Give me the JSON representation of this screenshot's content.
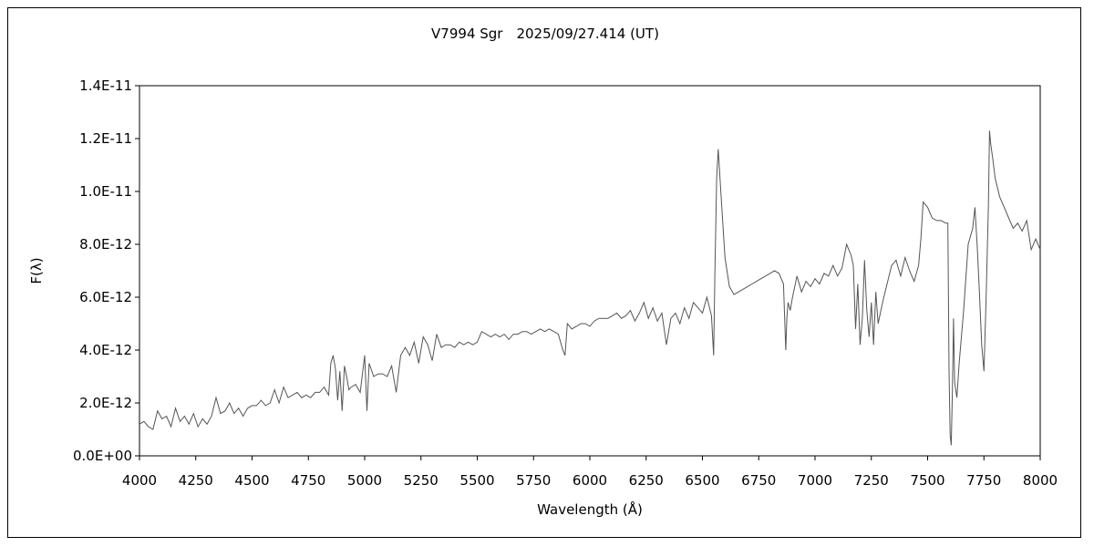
{
  "chart_data": {
    "type": "line",
    "title": "V7994 Sgr　2025/09/27.414 (UT)",
    "xlabel": "Wavelength (Å)",
    "ylabel": "F(λ)",
    "xlim": [
      4000,
      8000
    ],
    "ylim": [
      0,
      1.4e-11
    ],
    "xticks": [
      4000,
      4250,
      4500,
      4750,
      5000,
      5250,
      5500,
      5750,
      6000,
      6250,
      6500,
      6750,
      7000,
      7250,
      7500,
      7750,
      8000
    ],
    "xtick_labels": [
      "4000",
      "4250",
      "4500",
      "4750",
      "5000",
      "5250",
      "5500",
      "5750",
      "6000",
      "6250",
      "6500",
      "6750",
      "7000",
      "7250",
      "7500",
      "7750",
      "8000"
    ],
    "yticks": [
      0,
      2e-12,
      4e-12,
      6e-12,
      8e-12,
      1e-11,
      1.2e-11,
      1.4e-11
    ],
    "ytick_labels": [
      "0.0E+00",
      "2.0E-12",
      "4.0E-12",
      "6.0E-12",
      "8.0E-12",
      "1.0E-11",
      "1.2E-11",
      "1.4E-11"
    ],
    "grid": false,
    "line_color": "#555555",
    "series": [
      {
        "x": [
          4000,
          4020,
          4040,
          4060,
          4080,
          4100,
          4120,
          4140,
          4160,
          4180,
          4200,
          4220,
          4240,
          4260,
          4280,
          4300,
          4320,
          4340,
          4360,
          4380,
          4400,
          4420,
          4440,
          4460,
          4480,
          4500,
          4520,
          4540,
          4560,
          4580,
          4600,
          4620,
          4640,
          4660,
          4680,
          4700,
          4720,
          4740,
          4760,
          4780,
          4800,
          4820,
          4840,
          4850,
          4860,
          4870,
          4880,
          4890,
          4900,
          4910,
          4920,
          4930,
          4940,
          4960,
          4980,
          5000,
          5010,
          5020,
          5040,
          5060,
          5080,
          5100,
          5120,
          5140,
          5160,
          5180,
          5200,
          5220,
          5240,
          5260,
          5280,
          5300,
          5320,
          5340,
          5360,
          5380,
          5400,
          5420,
          5440,
          5460,
          5480,
          5500,
          5520,
          5540,
          5560,
          5580,
          5600,
          5620,
          5640,
          5660,
          5680,
          5700,
          5720,
          5740,
          5760,
          5780,
          5800,
          5820,
          5840,
          5860,
          5880,
          5890,
          5900,
          5920,
          5940,
          5960,
          5980,
          6000,
          6020,
          6040,
          6060,
          6080,
          6100,
          6120,
          6140,
          6160,
          6180,
          6200,
          6220,
          6240,
          6260,
          6280,
          6300,
          6320,
          6340,
          6360,
          6380,
          6400,
          6420,
          6440,
          6460,
          6480,
          6500,
          6520,
          6540,
          6550,
          6555,
          6563,
          6570,
          6580,
          6600,
          6620,
          6640,
          6660,
          6680,
          6700,
          6720,
          6740,
          6760,
          6780,
          6800,
          6820,
          6840,
          6860,
          6870,
          6875,
          6880,
          6890,
          6900,
          6920,
          6940,
          6960,
          6980,
          7000,
          7020,
          7040,
          7060,
          7080,
          7100,
          7120,
          7140,
          7160,
          7170,
          7180,
          7190,
          7200,
          7210,
          7220,
          7230,
          7240,
          7250,
          7260,
          7270,
          7280,
          7300,
          7320,
          7340,
          7360,
          7380,
          7400,
          7420,
          7440,
          7460,
          7470,
          7480,
          7500,
          7520,
          7540,
          7560,
          7580,
          7590,
          7595,
          7600,
          7605,
          7610,
          7615,
          7620,
          7630,
          7640,
          7660,
          7680,
          7700,
          7710,
          7720,
          7730,
          7740,
          7750,
          7760,
          7770,
          7775,
          7780,
          7790,
          7800,
          7820,
          7840,
          7860,
          7880,
          7900,
          7920,
          7940,
          7960,
          7980,
          8000
        ],
        "y": [
          1.2e-12,
          1.3e-12,
          1.1e-12,
          1e-12,
          1.7e-12,
          1.4e-12,
          1.5e-12,
          1.1e-12,
          1.8e-12,
          1.3e-12,
          1.5e-12,
          1.2e-12,
          1.6e-12,
          1.1e-12,
          1.4e-12,
          1.2e-12,
          1.5e-12,
          2.2e-12,
          1.6e-12,
          1.7e-12,
          2e-12,
          1.6e-12,
          1.8e-12,
          1.5e-12,
          1.8e-12,
          1.9e-12,
          1.9e-12,
          2.1e-12,
          1.9e-12,
          2e-12,
          2.5e-12,
          2e-12,
          2.6e-12,
          2.2e-12,
          2.3e-12,
          2.4e-12,
          2.2e-12,
          2.3e-12,
          2.2e-12,
          2.4e-12,
          2.4e-12,
          2.6e-12,
          2.3e-12,
          3.5e-12,
          3.8e-12,
          3.3e-12,
          2.1e-12,
          3.2e-12,
          1.7e-12,
          3.4e-12,
          3e-12,
          2.5e-12,
          2.6e-12,
          2.7e-12,
          2.4e-12,
          3.8e-12,
          1.7e-12,
          3.5e-12,
          3e-12,
          3.1e-12,
          3.1e-12,
          3e-12,
          3.4e-12,
          2.4e-12,
          3.8e-12,
          4.1e-12,
          3.8e-12,
          4.3e-12,
          3.5e-12,
          4.5e-12,
          4.2e-12,
          3.6e-12,
          4.6e-12,
          4.1e-12,
          4.2e-12,
          4.2e-12,
          4.1e-12,
          4.3e-12,
          4.2e-12,
          4.3e-12,
          4.2e-12,
          4.3e-12,
          4.7e-12,
          4.6e-12,
          4.5e-12,
          4.6e-12,
          4.5e-12,
          4.6e-12,
          4.4e-12,
          4.6e-12,
          4.6e-12,
          4.7e-12,
          4.7e-12,
          4.6e-12,
          4.7e-12,
          4.8e-12,
          4.7e-12,
          4.8e-12,
          4.7e-12,
          4.6e-12,
          4e-12,
          3.8e-12,
          5e-12,
          4.8e-12,
          4.9e-12,
          5e-12,
          5e-12,
          4.9e-12,
          5.1e-12,
          5.2e-12,
          5.2e-12,
          5.2e-12,
          5.3e-12,
          5.4e-12,
          5.2e-12,
          5.3e-12,
          5.5e-12,
          5.1e-12,
          5.4e-12,
          5.8e-12,
          5.2e-12,
          5.6e-12,
          5.1e-12,
          5.4e-12,
          4.2e-12,
          5.2e-12,
          5.4e-12,
          5e-12,
          5.6e-12,
          5.2e-12,
          5.8e-12,
          5.6e-12,
          5.4e-12,
          6e-12,
          5.3e-12,
          3.8e-12,
          6.8e-12,
          1.05e-11,
          1.16e-11,
          1.02e-11,
          7.5e-12,
          6.4e-12,
          6.1e-12,
          6.2e-12,
          6.3e-12,
          6.4e-12,
          6.5e-12,
          6.6e-12,
          6.7e-12,
          6.8e-12,
          6.9e-12,
          7e-12,
          6.9e-12,
          6.5e-12,
          4e-12,
          5.2e-12,
          5.8e-12,
          5.5e-12,
          6e-12,
          6.8e-12,
          6.2e-12,
          6.6e-12,
          6.4e-12,
          6.7e-12,
          6.5e-12,
          6.9e-12,
          6.8e-12,
          7.2e-12,
          6.8e-12,
          7.1e-12,
          8e-12,
          7.6e-12,
          7.2e-12,
          4.8e-12,
          6.5e-12,
          4.2e-12,
          5.2e-12,
          7.4e-12,
          5.5e-12,
          4.5e-12,
          5.8e-12,
          4.2e-12,
          6.2e-12,
          5e-12,
          5.8e-12,
          6.5e-12,
          7.2e-12,
          7.4e-12,
          6.8e-12,
          7.5e-12,
          7e-12,
          6.6e-12,
          7.2e-12,
          8.2e-12,
          9.6e-12,
          9.4e-12,
          9e-12,
          8.9e-12,
          8.9e-12,
          8.8e-12,
          8.8e-12,
          3.2e-12,
          8e-13,
          4e-13,
          2.5e-12,
          5.2e-12,
          2.8e-12,
          2.2e-12,
          3.5e-12,
          5.5e-12,
          8e-12,
          8.6e-12,
          9.4e-12,
          8e-12,
          6.2e-12,
          4.2e-12,
          3.2e-12,
          6e-12,
          9.5e-12,
          1.23e-11,
          1.18e-11,
          1.12e-11,
          1.05e-11,
          9.8e-12,
          9.4e-12,
          9e-12,
          8.6e-12,
          8.8e-12,
          8.5e-12,
          8.9e-12,
          7.8e-12,
          8.2e-12,
          7.8e-12
        ]
      }
    ]
  }
}
